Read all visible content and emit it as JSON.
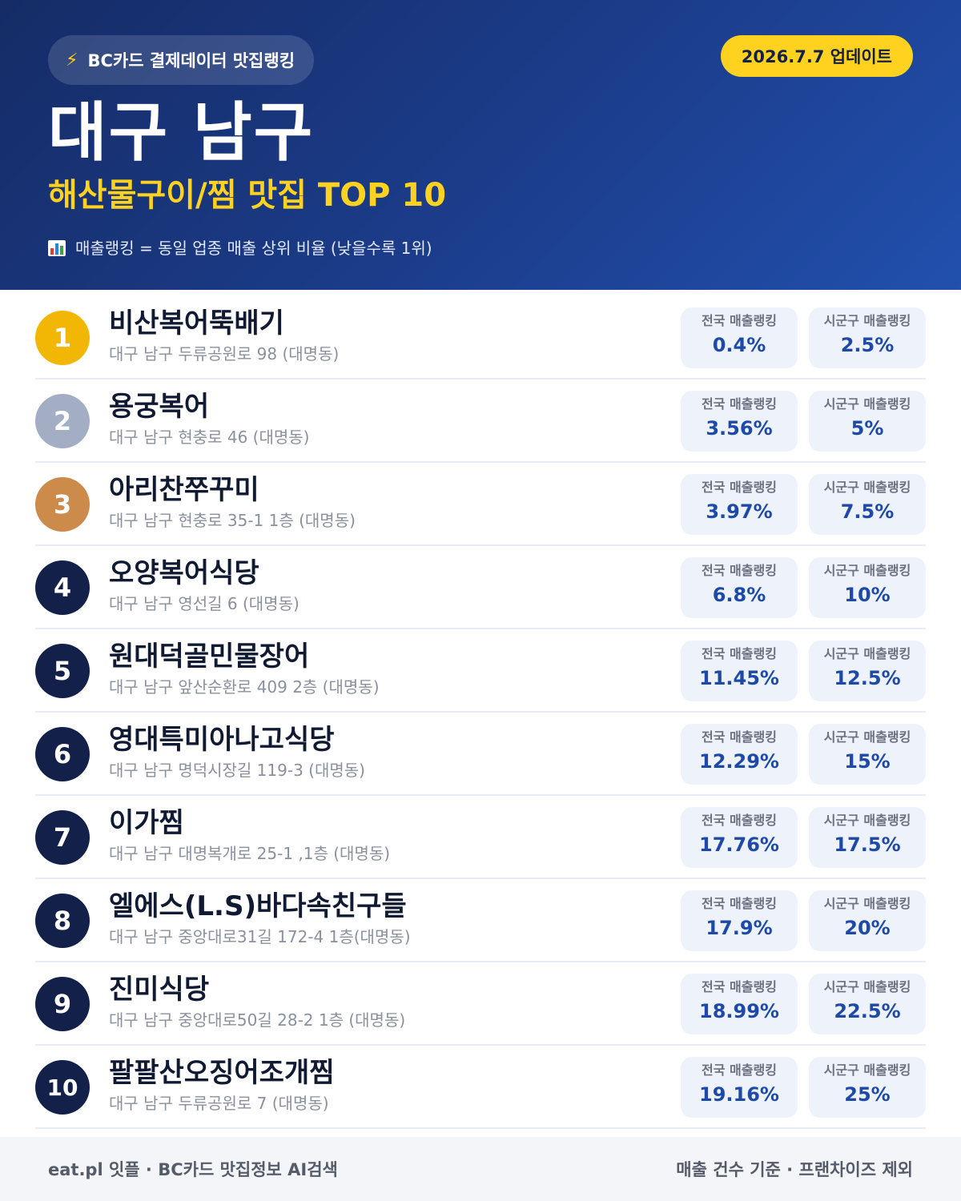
{
  "header": {
    "source_label": "BC카드 결제데이터 맛집랭킹",
    "update_label": "2026.7.7 업데이트",
    "title": "대구 남구",
    "subtitle": "해산물구이/찜 맛집 TOP 10",
    "legend": "매출랭킹 = 동일 업종 매출 상위 비율 (낮을수록 1위)"
  },
  "labels": {
    "national": "전국 매출랭킹",
    "local": "시군구 매출랭킹"
  },
  "colors": {
    "header_bg": "#1c3d8c",
    "accent_yellow": "#ffd21f",
    "gold": "#f2b705",
    "silver": "#a3aec4",
    "bronze": "#cc8a4b",
    "navy": "#13214a",
    "value_blue": "#1d4aa8"
  },
  "restaurants": [
    {
      "rank": "1",
      "name": "비산복어뚝배기",
      "address": "대구 남구 두류공원로 98 (대명동)",
      "national": "0.4%",
      "local": "2.5%",
      "badge": "gold"
    },
    {
      "rank": "2",
      "name": "용궁복어",
      "address": "대구 남구 현충로 46 (대명동)",
      "national": "3.56%",
      "local": "5%",
      "badge": "silver"
    },
    {
      "rank": "3",
      "name": "아리찬쭈꾸미",
      "address": "대구 남구 현충로 35-1 1층 (대명동)",
      "national": "3.97%",
      "local": "7.5%",
      "badge": "bronze"
    },
    {
      "rank": "4",
      "name": "오양복어식당",
      "address": "대구 남구 영선길 6 (대명동)",
      "national": "6.8%",
      "local": "10%",
      "badge": "navy"
    },
    {
      "rank": "5",
      "name": "원대덕골민물장어",
      "address": "대구 남구 앞산순환로 409 2층 (대명동)",
      "national": "11.45%",
      "local": "12.5%",
      "badge": "navy"
    },
    {
      "rank": "6",
      "name": "영대특미아나고식당",
      "address": "대구 남구 명덕시장길 119-3 (대명동)",
      "national": "12.29%",
      "local": "15%",
      "badge": "navy"
    },
    {
      "rank": "7",
      "name": "이가찜",
      "address": "대구 남구 대명복개로 25-1 ,1층 (대명동)",
      "national": "17.76%",
      "local": "17.5%",
      "badge": "navy"
    },
    {
      "rank": "8",
      "name": "엘에스(L.S)바다속친구들",
      "address": "대구 남구 중앙대로31길 172-4 1층(대명동)",
      "national": "17.9%",
      "local": "20%",
      "badge": "navy"
    },
    {
      "rank": "9",
      "name": "진미식당",
      "address": "대구 남구 중앙대로50길 28-2 1층 (대명동)",
      "national": "18.99%",
      "local": "22.5%",
      "badge": "navy"
    },
    {
      "rank": "10",
      "name": "팔팔산오징어조개찜",
      "address": "대구 남구 두류공원로 7 (대명동)",
      "national": "19.16%",
      "local": "25%",
      "badge": "navy"
    }
  ],
  "footer": {
    "left": "eat.pl 잇플 · BC카드 맛집정보 AI검색",
    "right": "매출 건수 기준 · 프랜차이즈 제외"
  }
}
